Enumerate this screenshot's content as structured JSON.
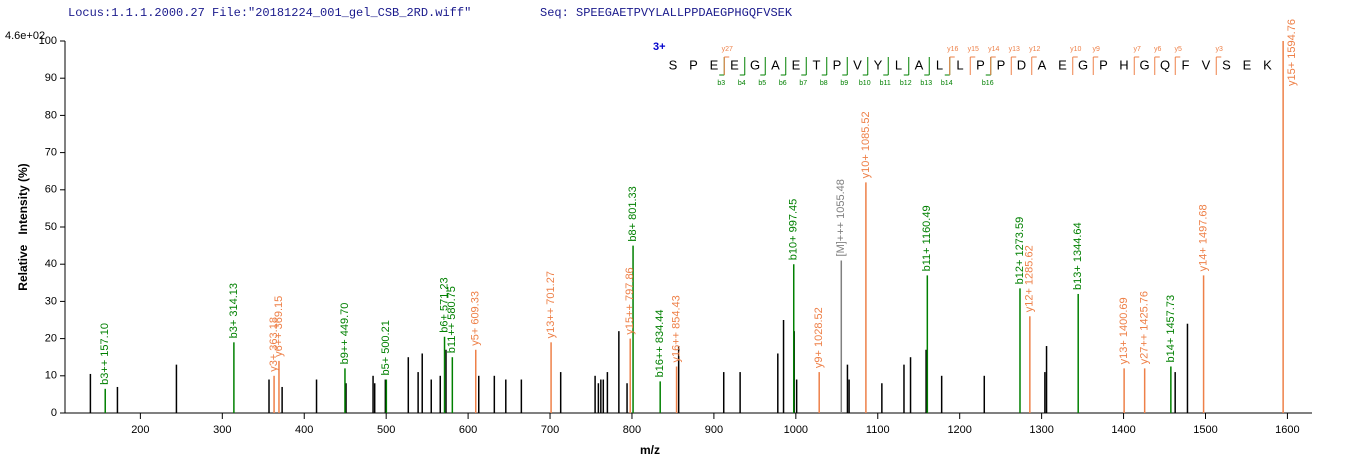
{
  "chart_data": {
    "type": "spectrum",
    "title": "Locus:1.1.1.2000.27 File:\"20181224_001_gel_CSB_2RD.wiff\"",
    "subtitle": "Seq: SPEEGAETPVYLALLPPDAEGPHGQFVSEK",
    "scale_label": "4.6e+02",
    "x_label": "m/z",
    "y_label": "Relative   Intensity (%)",
    "xlim": [
      108,
      1630
    ],
    "xticks": [
      200,
      300,
      400,
      500,
      600,
      700,
      800,
      900,
      1000,
      1100,
      1200,
      1300,
      1400,
      1500,
      1600
    ],
    "ylim": [
      0,
      100
    ],
    "yticks": [
      0,
      10,
      20,
      30,
      40,
      50,
      60,
      70,
      80,
      90,
      100
    ],
    "charge": "3+",
    "sequence": [
      "S",
      "P",
      "E",
      "E",
      "G",
      "A",
      "E",
      "T",
      "P",
      "V",
      "Y",
      "L",
      "A",
      "L",
      "L",
      "P",
      "P",
      "D",
      "A",
      "E",
      "G",
      "P",
      "H",
      "G",
      "Q",
      "F",
      "V",
      "S",
      "E",
      "K"
    ],
    "b_fragments": [
      "b3",
      "b4",
      "b5",
      "b6",
      "b7",
      "b8",
      "b9",
      "b10",
      "b11",
      "b12",
      "b13",
      "b14",
      "b16"
    ],
    "b_positions": [
      3,
      4,
      5,
      6,
      7,
      8,
      9,
      10,
      11,
      12,
      13,
      14,
      16
    ],
    "y_fragments": [
      "y27",
      "y16",
      "y15",
      "y14",
      "y13",
      "y12",
      "y10",
      "y9",
      "y7",
      "y6",
      "y5",
      "y3"
    ],
    "y_positions": [
      27,
      16,
      15,
      14,
      13,
      12,
      10,
      9,
      7,
      6,
      5,
      3
    ],
    "series": [
      {
        "color": "#000000",
        "x": [
          139,
          172,
          244,
          357,
          373,
          415,
          451,
          484,
          486,
          499,
          527,
          539,
          544,
          555,
          566,
          573,
          613,
          632,
          646,
          665,
          713,
          755,
          759,
          762,
          765,
          770,
          784,
          794,
          857,
          912,
          932,
          978,
          985,
          998,
          1001,
          1063,
          1065,
          1105,
          1132,
          1140,
          1159,
          1178,
          1230,
          1304,
          1306,
          1463,
          1478
        ],
        "values": [
          10.5,
          7,
          13,
          9,
          7,
          9,
          8,
          10,
          8,
          9,
          15,
          11,
          16,
          9,
          10,
          17,
          10,
          10,
          9,
          9,
          11,
          10,
          8,
          9,
          9,
          11,
          22,
          8,
          18,
          11,
          11,
          16,
          25,
          22,
          9,
          13,
          9,
          8,
          13,
          15,
          17,
          10,
          10,
          11,
          18,
          11,
          24
        ]
      },
      {
        "color": "#008000",
        "x": [
          157.1,
          314.13,
          449.7,
          500.21,
          571.23,
          580.75,
          801.33,
          834.44,
          997.45,
          1160.49,
          1273.59,
          1344.64,
          1457.73
        ],
        "values": [
          6.5,
          19,
          12,
          9,
          20.5,
          15,
          45,
          8.5,
          40,
          37,
          33.5,
          32,
          12.5
        ],
        "labels": [
          "b3++ 157.10",
          "b3+ 314.13",
          "b9++ 449.70",
          "b5+ 500.21",
          "b6+ 571.23",
          "b11++ 580.75",
          "b8+ 801.33",
          "b16++ 834.44",
          "b10+ 997.45",
          "b11+ 1160.49",
          "b12+ 1273.59",
          "b13+ 1344.64",
          "b14+ 1457.73"
        ]
      },
      {
        "color": "#ee8048",
        "x": [
          363.18,
          369.15,
          609.33,
          701.27,
          797.86,
          854.43,
          1028.52,
          1085.52,
          1285.62,
          1400.69,
          1425.76,
          1497.68,
          1594.76
        ],
        "values": [
          10,
          14,
          17,
          19,
          20,
          12.5,
          11,
          62,
          26,
          12,
          12,
          37,
          100
        ],
        "labels": [
          "y3+ 363.18",
          "y6++ 369.15",
          "y5+ 609.33",
          "y13++ 701.27",
          "y15++ 797.86",
          "y16++ 854.43",
          "y9+ 1028.52",
          "y10+ 1085.52",
          "y12+ 1285.62",
          "y13+ 1400.69",
          "y27++ 1425.76",
          "y14+ 1497.68",
          "y15+ 1594.76"
        ]
      },
      {
        "color": "#808080",
        "x": [
          1055.48
        ],
        "values": [
          41
        ],
        "labels": [
          "[M]+++ 1055.48"
        ]
      }
    ]
  }
}
